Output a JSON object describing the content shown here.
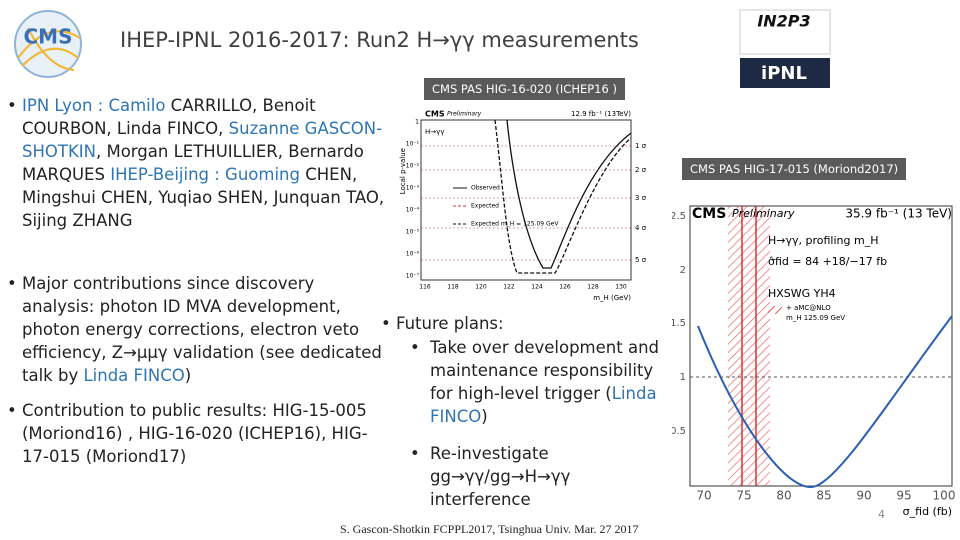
{
  "header": {
    "title": "IHEP-IPNL 2016-2017: Run2 H→γγ measurements"
  },
  "logos": {
    "cms": "CMS",
    "in2p3": "IN2P3",
    "ipnl": "iPNL"
  },
  "bullets": [
    {
      "runs": [
        {
          "text": "IPN Lyon : Camilo",
          "color": "#2e75b6"
        },
        {
          "text": " CARRILLO, Benoit COURBON, Linda FINCO, "
        },
        {
          "text": "Suzanne GASCON-SHOTKIN",
          "color": "#2e75b6"
        },
        {
          "text": ", Morgan LETHUILLIER, Bernardo MARQUES "
        },
        {
          "text": "IHEP-Beijing : Guoming",
          "color": "#2e75b6"
        },
        {
          "text": " CHEN, Mingshui CHEN, Yuqiao SHEN, Junquan TAO, Sijing ZHANG"
        }
      ]
    },
    {
      "runs": [
        {
          "text": "Major contributions since discovery analysis: photon ID MVA development, photon energy corrections, electron veto efficiency, Z→μμγ validation (see dedicated talk by "
        },
        {
          "text": "Linda FINCO",
          "color": "#2e75b6"
        },
        {
          "text": ")"
        }
      ]
    },
    {
      "runs": [
        {
          "text": "Contribution to public results:  HIG-15-005 (Moriond16) , HIG-16-020 (ICHEP16), HIG-17-015 (Moriond17)"
        }
      ]
    }
  ],
  "future": {
    "heading": "Future plans:",
    "items": [
      {
        "runs": [
          {
            "text": "Take over development and maintenance responsibility for high-level trigger ("
          },
          {
            "text": "Linda FINCO",
            "color": "#2e75b6"
          },
          {
            "text": ")"
          }
        ]
      },
      {
        "runs": [
          {
            "text": "Re-investigate gg→γγ/gg→H→γγ interference"
          }
        ]
      }
    ]
  },
  "badges": [
    "CMS PAS HIG-16-020 (ICHEP16 )",
    "CMS PAS HIG-17-015 (Moriond2017)"
  ],
  "plot1": {
    "label": "CMS",
    "sublabel": "Preliminary",
    "lumi": "12.9 fb⁻¹ (13TeV)",
    "ylabel": "Local p-value",
    "process": "H→γγ",
    "xlabel": "m_H (GeV)",
    "sigmas": [
      "1 σ",
      "2 σ",
      "3 σ",
      "4 σ",
      "5 σ"
    ],
    "legend": [
      "Observed",
      "Expected",
      "Expected m_H = 125.09 GeV"
    ],
    "xticks": [
      "116",
      "118",
      "120",
      "122",
      "124",
      "126",
      "128",
      "130"
    ],
    "yticks": [
      "1",
      "10⁻¹",
      "10⁻²",
      "10⁻³",
      "10⁻⁴",
      "10⁻⁵",
      "10⁻⁶",
      "10⁻⁷"
    ]
  },
  "plot2": {
    "label": "CMS",
    "sublabel": "Preliminary",
    "lumi": "35.9 fb⁻¹ (13 TeV)",
    "process": "H→γγ, profiling m_H",
    "fit": "σ̂fid = 84 +18/−17 fb",
    "theory": "HXSWG YH4",
    "legend": [
      "+ aMC@NLO",
      "m_H 125.09 GeV"
    ],
    "yticks": [
      "0.5",
      "1",
      "1.5",
      "2",
      "2.5"
    ],
    "xticks": [
      "70",
      "75",
      "80",
      "85",
      "90",
      "95",
      "100"
    ],
    "xlabel": "σ_fid (fb)"
  },
  "footer": {
    "credit": "S. Gascon-Shotkin  FCPPL2017, Tsinghua Univ.  Mar. 27  2017",
    "page": "4"
  }
}
